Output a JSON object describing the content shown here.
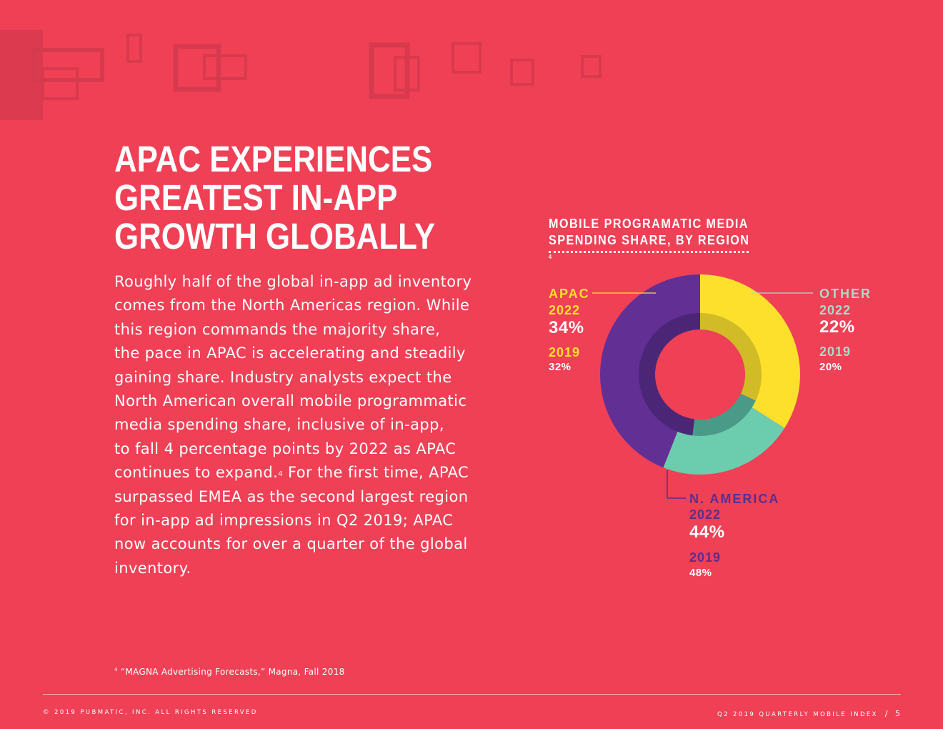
{
  "page": {
    "headline": [
      "APAC EXPERIENCES",
      "GREATEST IN-APP",
      "GROWTH GLOBALLY"
    ],
    "body_lines": [
      "Roughly half of the global in-app ad inventory",
      "comes from the North Americas region. While",
      "this region commands the majority share,",
      "the pace in APAC is accelerating and steadily",
      "gaining share. Industry analysts expect the",
      "North American overall mobile programmatic",
      "media spending share, inclusive of in-app,",
      "to fall 4 percentage points by 2022 as APAC",
      "continues to expand.",
      "surpassed EMEA as the second largest region",
      "for in-app ad impressions in Q2 2019; APAC",
      "now accounts for over a quarter of the global",
      "inventory."
    ],
    "body_footnote_ref": "4",
    "body_line9_tail": " For the first time, APAC",
    "footnote_marker": "4",
    "footnote_text": " “MAGNA Advertising Forecasts,” Magna, Fall 2018",
    "footer_left": "© 2019 PUBMATIC, INC. ALL RIGHTS RESERVED",
    "footer_right": "Q2 2019 QUARTERLY MOBILE INDEX",
    "footer_slash": "/",
    "page_number": "5"
  },
  "colors": {
    "background": "#ef4056",
    "apac": "#fde02b",
    "apac_inner": "#d1bc28",
    "other": "#6bccae",
    "other_inner": "#4a9a88",
    "na": "#622f95",
    "na_inner": "#4b2677",
    "label_apac": "#fde02b",
    "label_other": "#a6ddc7",
    "label_na": "#5d2d8f"
  },
  "chart_data": {
    "type": "pie",
    "variant": "nested-donut",
    "title_lines": [
      "MOBILE PROGRAMATIC MEDIA",
      "SPENDING SHARE, BY REGION"
    ],
    "title_footnote": "4",
    "categories": [
      "APAC",
      "OTHER",
      "N. AMERICA"
    ],
    "series": [
      {
        "name": "2022",
        "ring": "outer",
        "values": [
          34,
          22,
          44
        ]
      },
      {
        "name": "2019",
        "ring": "inner",
        "values": [
          32,
          20,
          48
        ]
      }
    ],
    "labels": {
      "APAC": {
        "region": "APAC",
        "y1": "2022",
        "v1": "34%",
        "y2": "2019",
        "v2": "32%"
      },
      "OTHER": {
        "region": "OTHER",
        "y1": "2022",
        "v1": "22%",
        "y2": "2019",
        "v2": "20%"
      },
      "N. AMERICA": {
        "region": "N. AMERICA",
        "y1": "2022",
        "v1": "44%",
        "y2": "2019",
        "v2": "48%"
      }
    }
  }
}
